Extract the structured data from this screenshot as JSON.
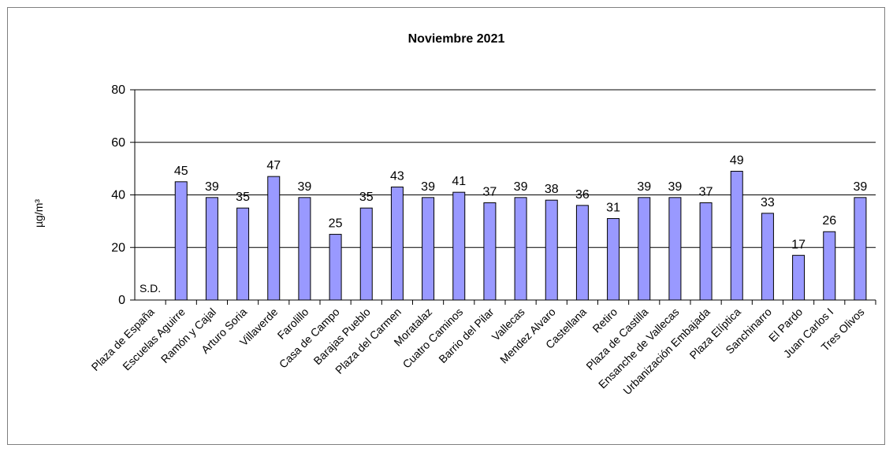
{
  "chart_data": {
    "type": "bar",
    "title": "Noviembre 2021",
    "ylabel": "µg/m³",
    "xlabel": "",
    "ylim": [
      0,
      80
    ],
    "yticks": [
      0,
      20,
      40,
      60,
      80
    ],
    "grid": true,
    "legend": "none",
    "bar_color": "#9999ff",
    "bar_edge_color": "#000000",
    "categories": [
      "Plaza de España",
      "Escuelas Aguirre",
      "Ramón y Cajal",
      "Arturo Soria",
      "Villaverde",
      "Farolillo",
      "Casa de Campo",
      "Barajas Pueblo",
      "Plaza del Carmen",
      "Moratalaz",
      "Cuatro Caminos",
      "Barrio del Pilar",
      "Vallecas",
      "Mendez Alvaro",
      "Castellana",
      "Retiro",
      "Plaza de Castilla",
      "Ensanche de Vallecas",
      "Urbanización Embajada",
      "Plaza Elíptica",
      "Sanchinarro",
      "El Pardo",
      "Juan Carlos I",
      "Tres Olivos"
    ],
    "values": [
      null,
      45,
      39,
      35,
      47,
      39,
      25,
      35,
      43,
      39,
      41,
      37,
      39,
      38,
      36,
      31,
      39,
      39,
      37,
      49,
      33,
      17,
      26,
      39
    ],
    "data_labels": [
      "S.D.",
      "45",
      "39",
      "35",
      "47",
      "39",
      "25",
      "35",
      "43",
      "39",
      "41",
      "37",
      "39",
      "38",
      "36",
      "31",
      "39",
      "39",
      "37",
      "49",
      "33",
      "17",
      "26",
      "39"
    ]
  }
}
